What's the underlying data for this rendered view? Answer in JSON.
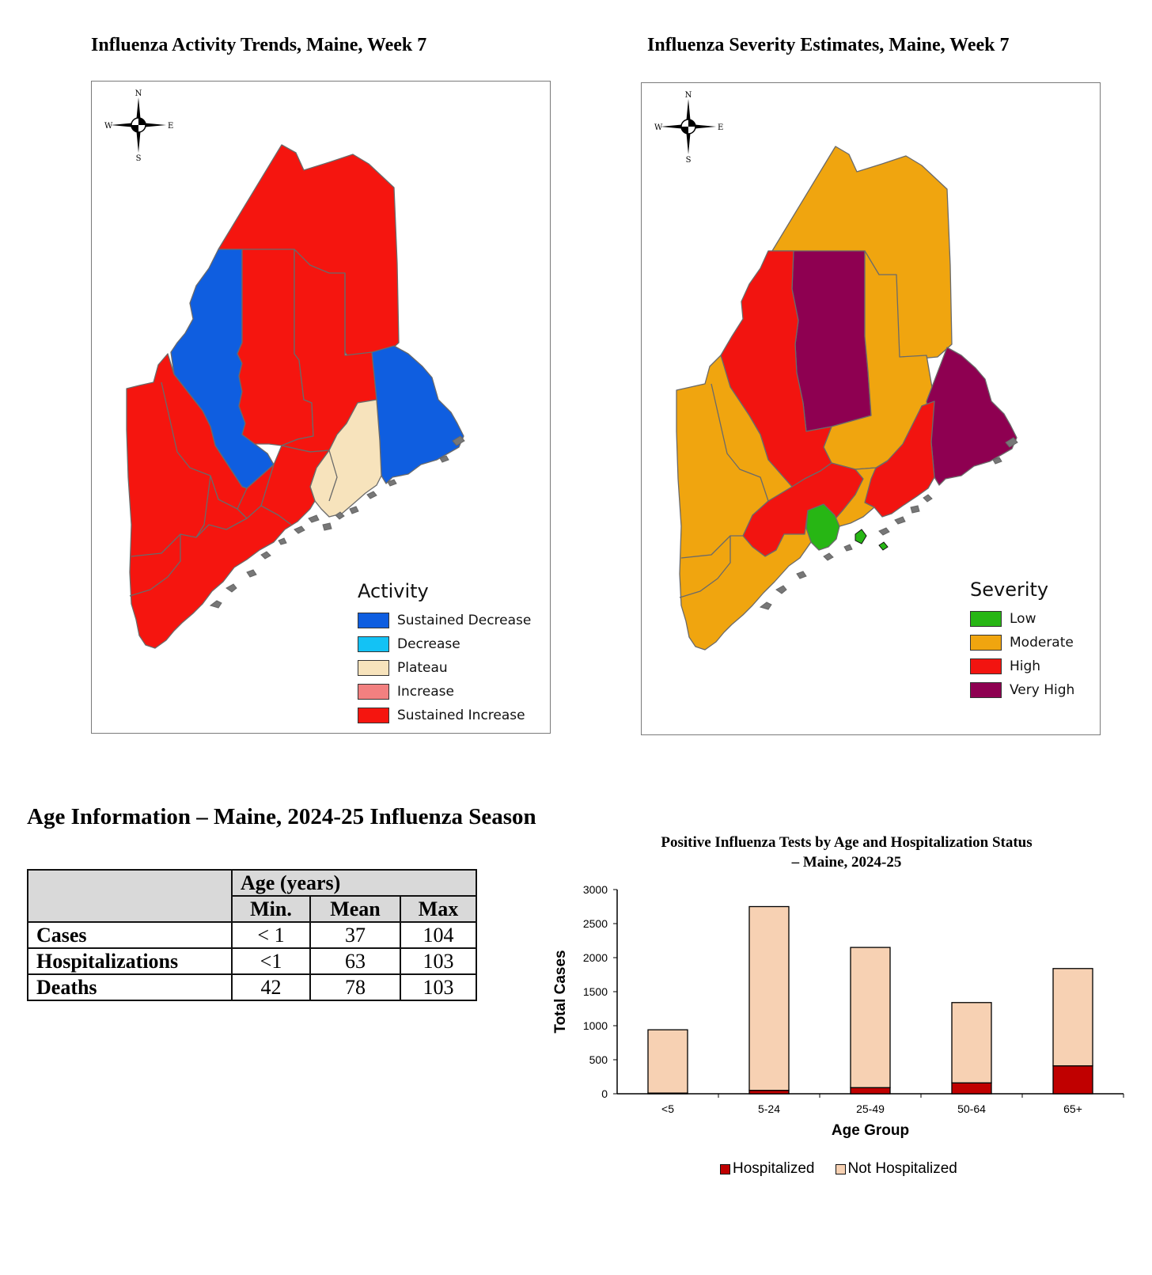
{
  "map_activity": {
    "title": "Influenza Activity Trends, Maine, Week 7",
    "legend_title": "Activity",
    "legend": [
      {
        "label": "Sustained Decrease",
        "color": "#0f5ee0"
      },
      {
        "label": "Decrease",
        "color": "#13c2f5"
      },
      {
        "label": "Plateau",
        "color": "#f7e3bc"
      },
      {
        "label": "Increase",
        "color": "#f28080"
      },
      {
        "label": "Sustained Increase",
        "color": "#f5150f"
      }
    ],
    "compass": {
      "n": "N",
      "s": "S",
      "e": "E",
      "w": "W"
    }
  },
  "map_severity": {
    "title": "Influenza Severity Estimates, Maine, Week 7",
    "legend_title": "Severity",
    "legend": [
      {
        "label": "Low",
        "color": "#27b614"
      },
      {
        "label": "Moderate",
        "color": "#f0a50f"
      },
      {
        "label": "High",
        "color": "#f21410"
      },
      {
        "label": "Very High",
        "color": "#8e0051"
      }
    ],
    "compass": {
      "n": "N",
      "s": "S",
      "e": "E",
      "w": "W"
    }
  },
  "age_info": {
    "title": "Age Information – Maine, 2024-25 Influenza Season",
    "group_header": "Age (years)",
    "columns": [
      "Min.",
      "Mean",
      "Max"
    ],
    "rows": [
      {
        "label": "Cases",
        "min": "< 1",
        "mean": "37",
        "max": "104"
      },
      {
        "label": "Hospitalizations",
        "min": "<1",
        "mean": "63",
        "max": "103"
      },
      {
        "label": "Deaths",
        "min": "42",
        "mean": "78",
        "max": "103"
      }
    ]
  },
  "chart_data": {
    "type": "bar",
    "stacked": true,
    "title": "Positive Influenza Tests by Age and Hospitalization Status",
    "subtitle": "– Maine, 2024-25",
    "xlabel": "Age Group",
    "ylabel": "Total Cases",
    "ylim": [
      0,
      3000
    ],
    "yticks": [
      0,
      500,
      1000,
      1500,
      2000,
      2500,
      3000
    ],
    "categories": [
      "<5",
      "5-24",
      "25-49",
      "50-64",
      "65+"
    ],
    "series": [
      {
        "name": "Hospitalized",
        "color": "#c00000",
        "values": [
          10,
          50,
          90,
          160,
          410
        ]
      },
      {
        "name": "Not Hospitalized",
        "color": "#f7d1b3",
        "values": [
          930,
          2700,
          2060,
          1180,
          1430
        ]
      }
    ],
    "legend_position": "bottom"
  }
}
